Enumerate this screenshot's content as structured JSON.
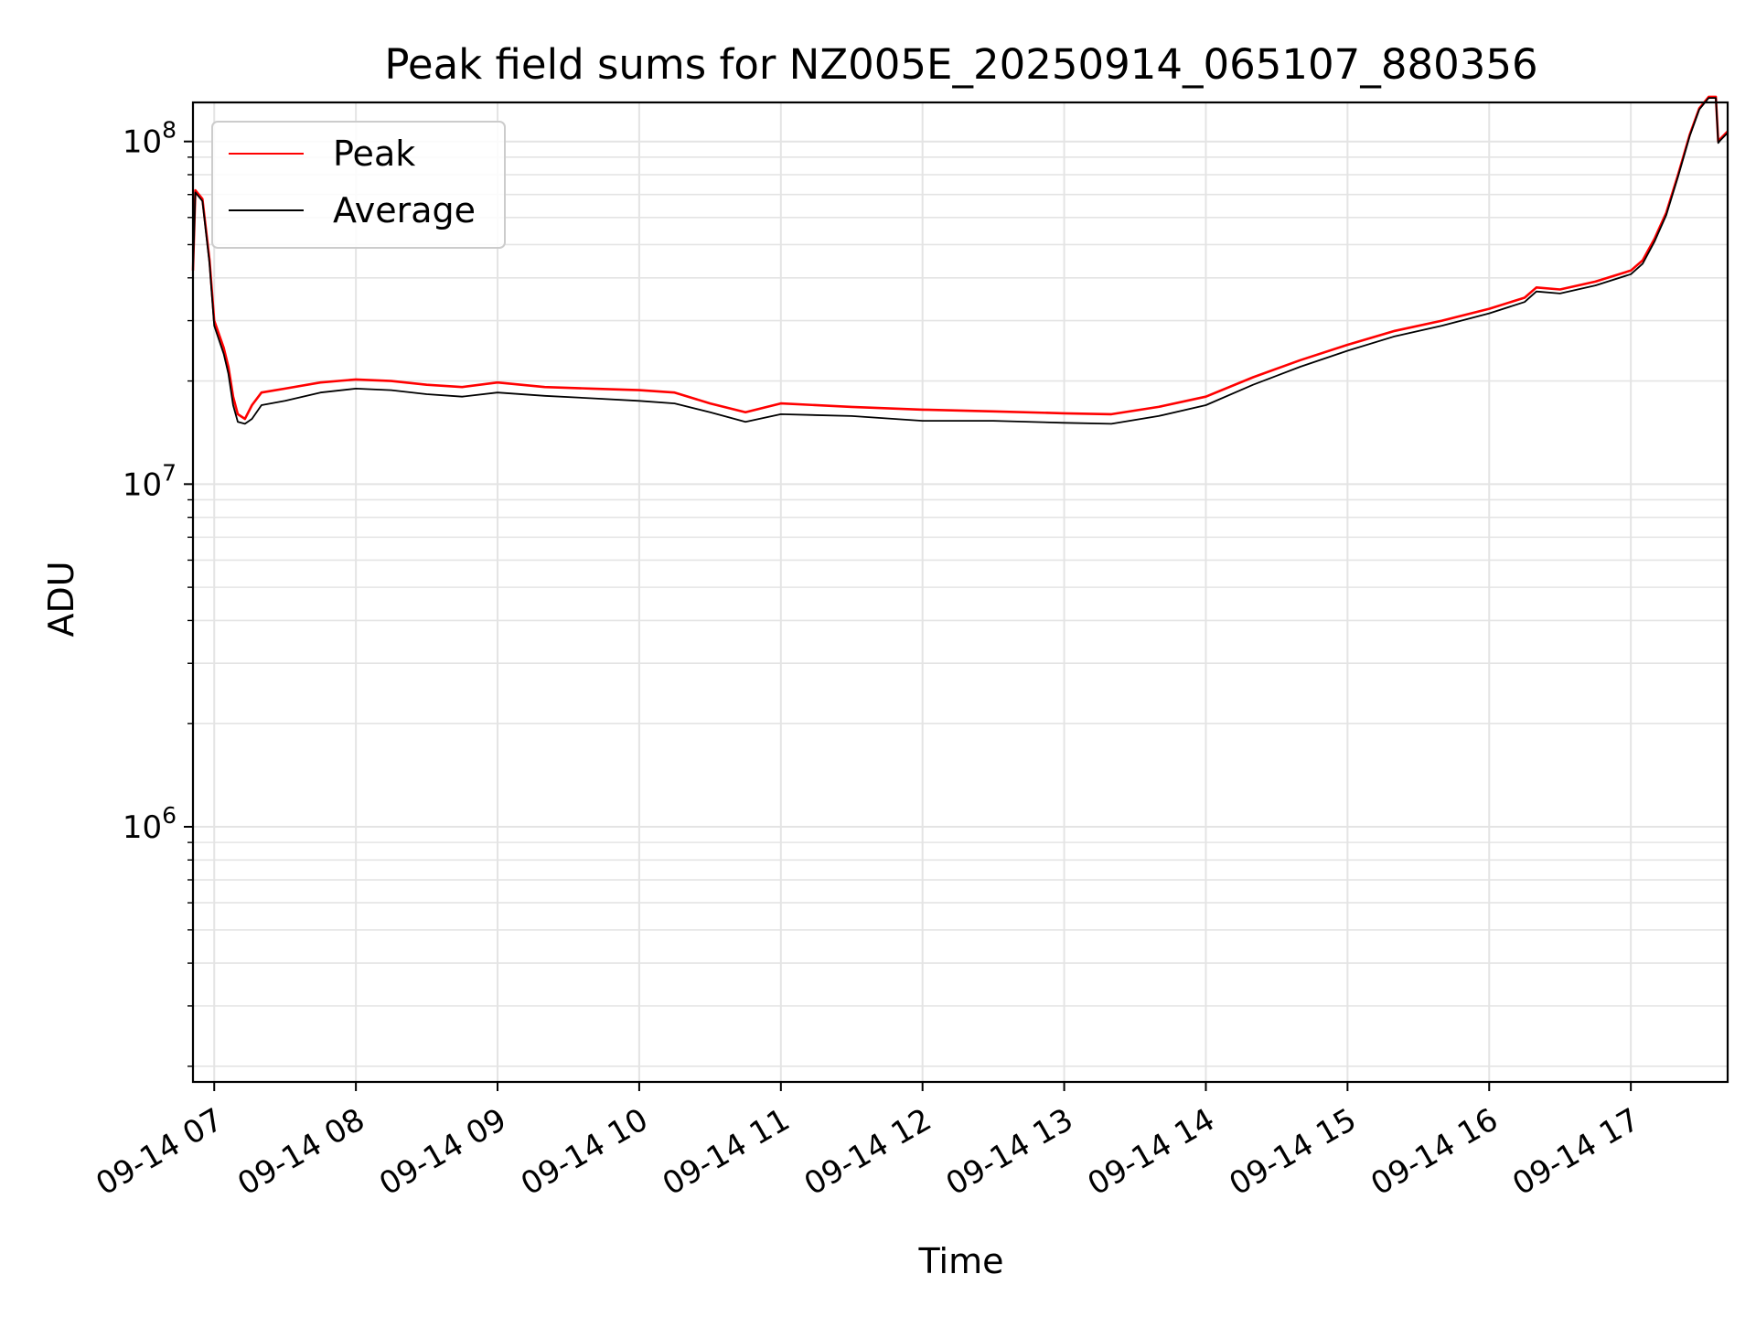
{
  "chart_data": {
    "type": "line",
    "title": "Peak field sums for NZ005E_20250914_065107_880356",
    "xlabel": "Time",
    "ylabel": "ADU",
    "y_scale": "log",
    "ylim": [
      180000,
      130000000
    ],
    "xlim": [
      "2025-09-14 06:51",
      "2025-09-14 17:41"
    ],
    "x_ticks": [
      {
        "value": "2025-09-14 07:00",
        "label": "09-14 07"
      },
      {
        "value": "2025-09-14 08:00",
        "label": "09-14 08"
      },
      {
        "value": "2025-09-14 09:00",
        "label": "09-14 09"
      },
      {
        "value": "2025-09-14 10:00",
        "label": "09-14 10"
      },
      {
        "value": "2025-09-14 11:00",
        "label": "09-14 11"
      },
      {
        "value": "2025-09-14 12:00",
        "label": "09-14 12"
      },
      {
        "value": "2025-09-14 13:00",
        "label": "09-14 13"
      },
      {
        "value": "2025-09-14 14:00",
        "label": "09-14 14"
      },
      {
        "value": "2025-09-14 15:00",
        "label": "09-14 15"
      },
      {
        "value": "2025-09-14 16:00",
        "label": "09-14 16"
      },
      {
        "value": "2025-09-14 17:00",
        "label": "09-14 17"
      }
    ],
    "y_ticks": [
      {
        "value": 1000000,
        "base": "10",
        "exp": "6"
      },
      {
        "value": 10000000,
        "base": "10",
        "exp": "7"
      },
      {
        "value": 100000000,
        "base": "10",
        "exp": "8"
      }
    ],
    "grid": true,
    "legend_position": "upper-left",
    "series": [
      {
        "name": "Peak",
        "color": "#ff0000",
        "x": [
          "2025-09-14 06:51",
          "2025-09-14 06:52",
          "2025-09-14 06:55",
          "2025-09-14 06:58",
          "2025-09-14 07:00",
          "2025-09-14 07:04",
          "2025-09-14 07:06",
          "2025-09-14 07:08",
          "2025-09-14 07:10",
          "2025-09-14 07:13",
          "2025-09-14 07:16",
          "2025-09-14 07:20",
          "2025-09-14 07:30",
          "2025-09-14 07:45",
          "2025-09-14 08:00",
          "2025-09-14 08:15",
          "2025-09-14 08:30",
          "2025-09-14 08:45",
          "2025-09-14 09:00",
          "2025-09-14 09:20",
          "2025-09-14 09:40",
          "2025-09-14 10:00",
          "2025-09-14 10:15",
          "2025-09-14 10:30",
          "2025-09-14 10:45",
          "2025-09-14 11:00",
          "2025-09-14 11:30",
          "2025-09-14 12:00",
          "2025-09-14 12:30",
          "2025-09-14 13:00",
          "2025-09-14 13:20",
          "2025-09-14 13:40",
          "2025-09-14 14:00",
          "2025-09-14 14:20",
          "2025-09-14 14:40",
          "2025-09-14 15:00",
          "2025-09-14 15:20",
          "2025-09-14 15:40",
          "2025-09-14 16:00",
          "2025-09-14 16:15",
          "2025-09-14 16:20",
          "2025-09-14 16:30",
          "2025-09-14 16:45",
          "2025-09-14 17:00",
          "2025-09-14 17:05",
          "2025-09-14 17:10",
          "2025-09-14 17:15",
          "2025-09-14 17:20",
          "2025-09-14 17:25",
          "2025-09-14 17:29",
          "2025-09-14 17:33",
          "2025-09-14 17:36",
          "2025-09-14 17:37",
          "2025-09-14 17:38",
          "2025-09-14 17:41"
        ],
        "y": [
          42000000,
          72000000,
          68000000,
          45000000,
          30000000,
          25000000,
          22000000,
          18000000,
          16000000,
          15500000,
          17000000,
          18500000,
          19000000,
          19800000,
          20200000,
          20000000,
          19500000,
          19200000,
          19800000,
          19200000,
          19000000,
          18800000,
          18500000,
          17200000,
          16200000,
          17200000,
          16800000,
          16500000,
          16300000,
          16100000,
          16000000,
          16800000,
          18000000,
          20500000,
          23000000,
          25500000,
          28000000,
          30000000,
          32500000,
          35000000,
          37500000,
          37000000,
          39000000,
          42000000,
          45000000,
          52000000,
          62000000,
          80000000,
          105000000,
          125000000,
          135000000,
          135000000,
          100000000,
          102000000,
          107000000
        ]
      },
      {
        "name": "Average",
        "color": "#000000",
        "x": [
          "2025-09-14 06:51",
          "2025-09-14 06:52",
          "2025-09-14 06:55",
          "2025-09-14 06:58",
          "2025-09-14 07:00",
          "2025-09-14 07:04",
          "2025-09-14 07:06",
          "2025-09-14 07:08",
          "2025-09-14 07:10",
          "2025-09-14 07:13",
          "2025-09-14 07:16",
          "2025-09-14 07:20",
          "2025-09-14 07:30",
          "2025-09-14 07:45",
          "2025-09-14 08:00",
          "2025-09-14 08:15",
          "2025-09-14 08:30",
          "2025-09-14 08:45",
          "2025-09-14 09:00",
          "2025-09-14 09:20",
          "2025-09-14 09:40",
          "2025-09-14 10:00",
          "2025-09-14 10:15",
          "2025-09-14 10:30",
          "2025-09-14 10:45",
          "2025-09-14 11:00",
          "2025-09-14 11:30",
          "2025-09-14 12:00",
          "2025-09-14 12:30",
          "2025-09-14 13:00",
          "2025-09-14 13:20",
          "2025-09-14 13:40",
          "2025-09-14 14:00",
          "2025-09-14 14:20",
          "2025-09-14 14:40",
          "2025-09-14 15:00",
          "2025-09-14 15:20",
          "2025-09-14 15:40",
          "2025-09-14 16:00",
          "2025-09-14 16:15",
          "2025-09-14 16:20",
          "2025-09-14 16:30",
          "2025-09-14 16:45",
          "2025-09-14 17:00",
          "2025-09-14 17:05",
          "2025-09-14 17:10",
          "2025-09-14 17:15",
          "2025-09-14 17:20",
          "2025-09-14 17:25",
          "2025-09-14 17:29",
          "2025-09-14 17:33",
          "2025-09-14 17:36",
          "2025-09-14 17:37",
          "2025-09-14 17:38",
          "2025-09-14 17:41"
        ],
        "y": [
          42000000,
          71000000,
          67000000,
          44000000,
          29000000,
          24000000,
          21000000,
          17000000,
          15200000,
          15000000,
          15500000,
          17000000,
          17500000,
          18500000,
          19000000,
          18800000,
          18300000,
          18000000,
          18500000,
          18100000,
          17800000,
          17500000,
          17200000,
          16200000,
          15200000,
          16000000,
          15800000,
          15300000,
          15300000,
          15100000,
          15000000,
          15800000,
          17000000,
          19500000,
          22000000,
          24500000,
          27000000,
          29000000,
          31500000,
          34000000,
          36500000,
          36000000,
          38000000,
          41000000,
          44000000,
          51000000,
          61000000,
          79000000,
          104000000,
          124000000,
          134000000,
          134000000,
          99000000,
          101000000,
          106000000
        ]
      }
    ]
  }
}
